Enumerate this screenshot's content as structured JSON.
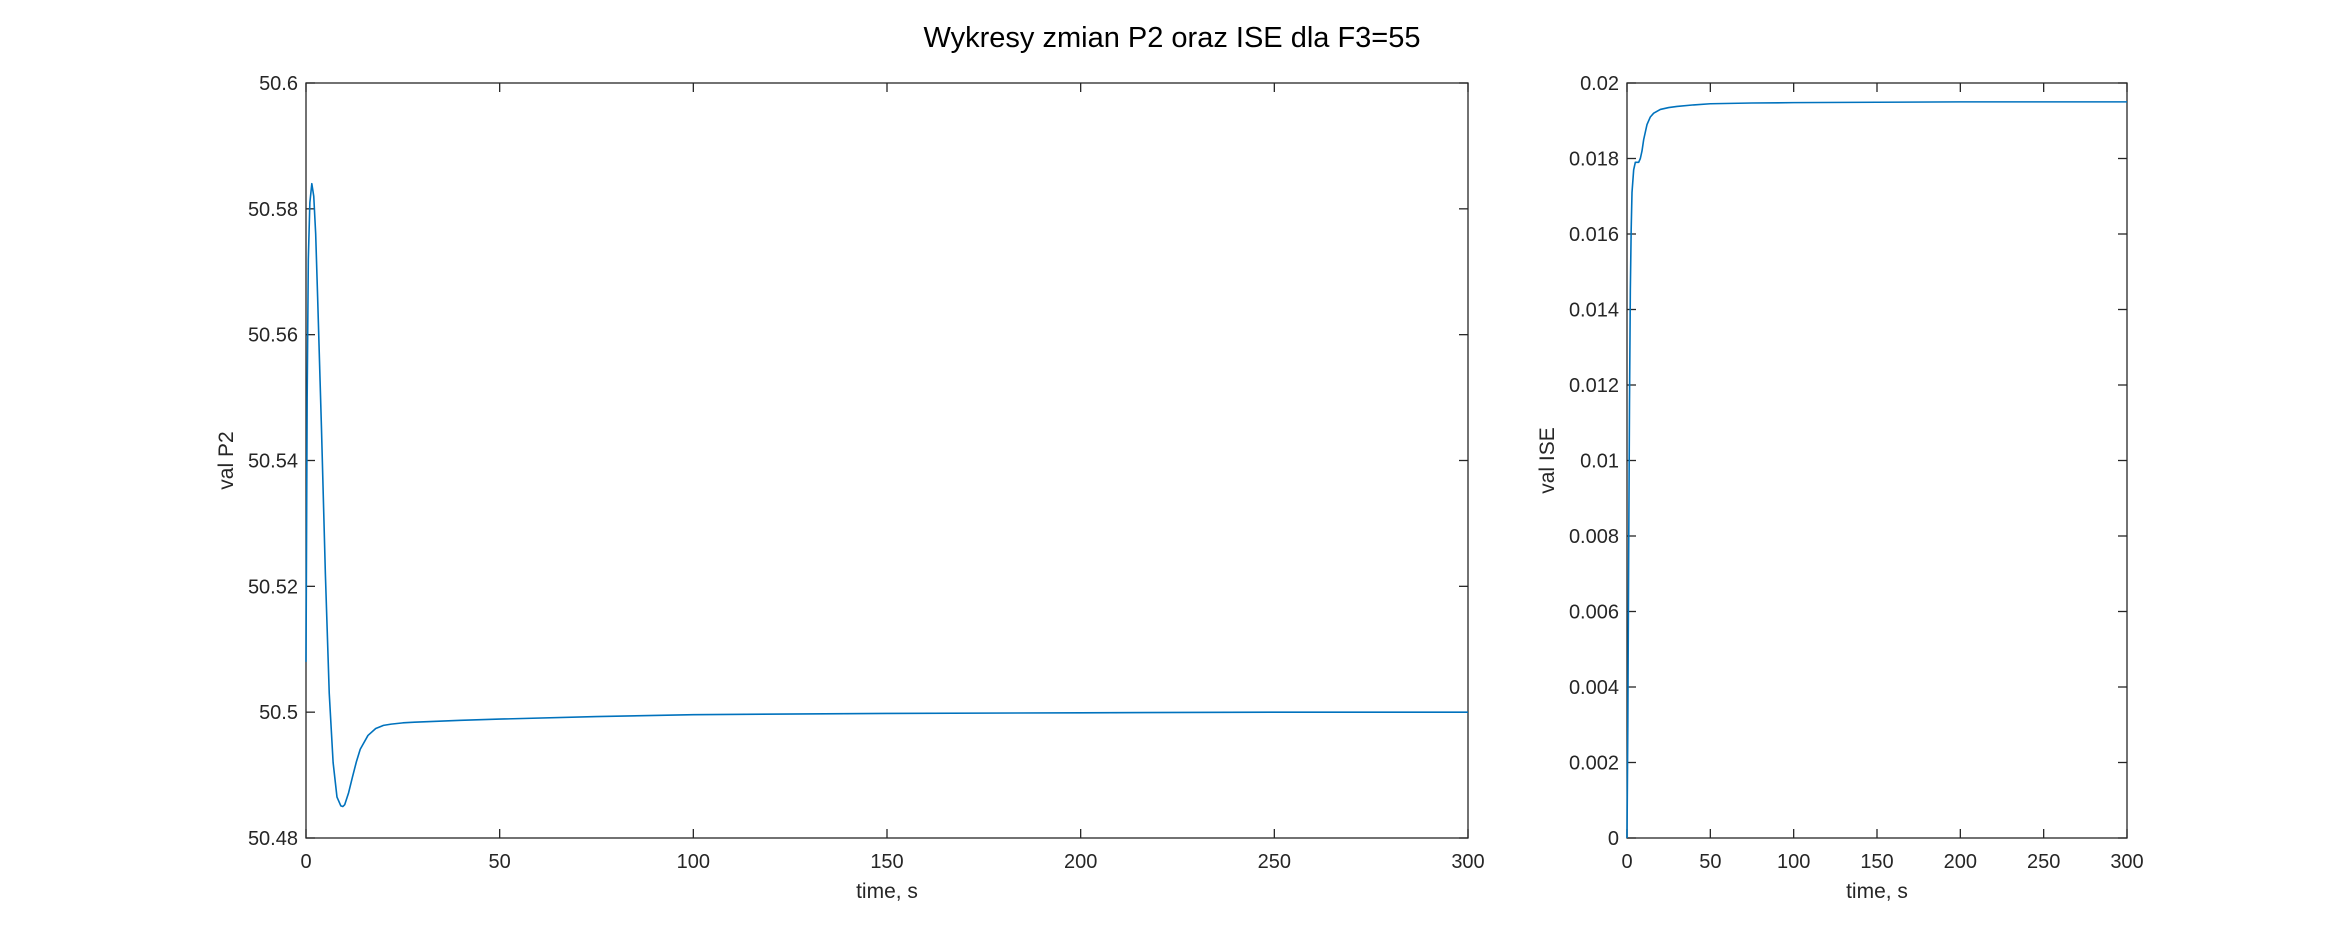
{
  "figure": {
    "title": "Wykresy zmian P2 oraz ISE dla F3=55",
    "line_color": "#0072BD",
    "axes_color": "#262626"
  },
  "chart_data": [
    {
      "type": "line",
      "xlabel": "time, s",
      "ylabel": "val P2",
      "xlim": [
        0,
        300
      ],
      "ylim": [
        50.48,
        50.6
      ],
      "xticks": [
        0,
        50,
        100,
        150,
        200,
        250,
        300
      ],
      "xtick_labels": [
        "0",
        "50",
        "100",
        "150",
        "200",
        "250",
        "300"
      ],
      "yticks": [
        50.48,
        50.5,
        50.52,
        50.54,
        50.56,
        50.58,
        50.6
      ],
      "ytick_labels": [
        "50.48",
        "50.5",
        "50.52",
        "50.54",
        "50.56",
        "50.58",
        "50.6"
      ],
      "grid": false,
      "box": true,
      "series": [
        {
          "x": [
            0,
            0.3,
            0.6,
            1.0,
            1.5,
            2.0,
            2.5,
            3,
            4,
            5,
            6,
            7,
            8,
            9,
            9.5,
            10,
            11,
            12,
            13,
            14,
            16,
            18,
            20,
            22,
            25,
            28,
            32,
            40,
            50,
            75,
            100,
            150,
            200,
            250,
            300
          ],
          "y": [
            50.508,
            50.55,
            50.572,
            50.581,
            50.584,
            50.582,
            50.576,
            50.566,
            50.545,
            50.522,
            50.503,
            50.492,
            50.4865,
            50.4851,
            50.485,
            50.4853,
            50.4872,
            50.4897,
            50.4921,
            50.4941,
            50.4963,
            50.4974,
            50.4979,
            50.4981,
            50.4983,
            50.4984,
            50.4985,
            50.4987,
            50.4989,
            50.4993,
            50.4996,
            50.4998,
            50.4999,
            50.5,
            50.5
          ]
        }
      ]
    },
    {
      "type": "line",
      "xlabel": "time, s",
      "ylabel": "val ISE",
      "xlim": [
        0,
        300
      ],
      "ylim": [
        0,
        0.02
      ],
      "xticks": [
        0,
        50,
        100,
        150,
        200,
        250,
        300
      ],
      "xtick_labels": [
        "0",
        "50",
        "100",
        "150",
        "200",
        "250",
        "300"
      ],
      "yticks": [
        0,
        0.002,
        0.004,
        0.006,
        0.008,
        0.01,
        0.012,
        0.014,
        0.016,
        0.018,
        0.02
      ],
      "ytick_labels": [
        "0",
        "0.002",
        "0.004",
        "0.006",
        "0.008",
        "0.01",
        "0.012",
        "0.014",
        "0.016",
        "0.018",
        "0.02"
      ],
      "grid": false,
      "box": true,
      "series": [
        {
          "x": [
            0,
            0.5,
            1,
            1.5,
            2,
            2.5,
            3,
            4,
            5,
            6,
            7,
            8,
            9,
            10,
            12,
            14,
            16,
            18,
            20,
            25,
            30,
            40,
            50,
            75,
            100,
            150,
            200,
            250,
            300
          ],
          "y": [
            0,
            0.003,
            0.0075,
            0.0115,
            0.0145,
            0.0161,
            0.0171,
            0.0177,
            0.0179,
            0.0179,
            0.0179,
            0.018,
            0.0182,
            0.0185,
            0.0189,
            0.0191,
            0.0192,
            0.01925,
            0.0193,
            0.01935,
            0.01938,
            0.01942,
            0.01945,
            0.01947,
            0.01948,
            0.01949,
            0.0195,
            0.0195,
            0.0195
          ]
        }
      ]
    }
  ]
}
